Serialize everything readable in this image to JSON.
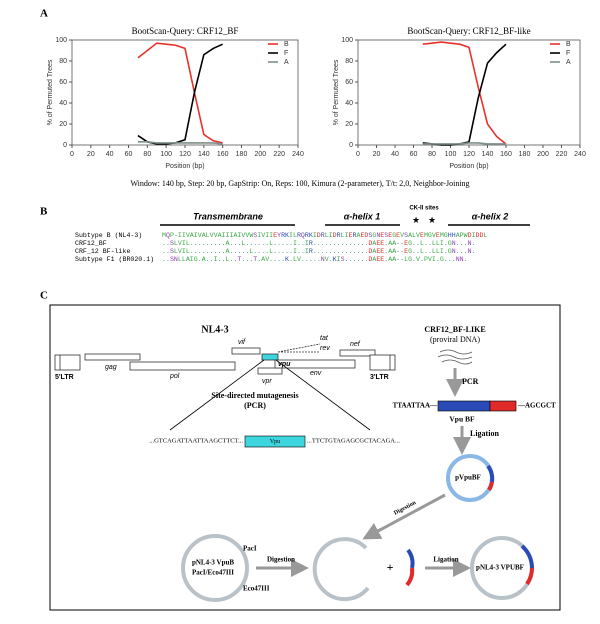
{
  "panels": [
    "A",
    "B",
    "C"
  ],
  "chart_data": [
    {
      "type": "line",
      "title": "BootScan-Query: CRF12_BF",
      "xlabel": "Position (bp)",
      "ylabel": "% of Permuted Trees",
      "x": [
        70,
        80,
        90,
        100,
        110,
        120,
        130,
        140,
        150,
        160
      ],
      "series": [
        {
          "name": "B",
          "color": "#e8312a",
          "values": [
            83,
            90,
            97,
            96,
            95,
            92,
            50,
            10,
            4,
            2
          ]
        },
        {
          "name": "F",
          "color": "#000000",
          "values": [
            9,
            3,
            1,
            1,
            2,
            5,
            50,
            86,
            92,
            96
          ]
        },
        {
          "name": "A",
          "color": "#7f8f8a",
          "values": [
            3,
            3,
            2,
            2,
            2,
            2,
            2,
            2,
            2,
            1
          ]
        }
      ],
      "xlim": [
        0,
        240
      ],
      "xticks": [
        0,
        20,
        40,
        60,
        80,
        100,
        120,
        140,
        160,
        180,
        200,
        220,
        240
      ],
      "ylim": [
        0,
        100
      ],
      "yticks": [
        0,
        20,
        40,
        60,
        80,
        100
      ],
      "legend": "upper right"
    },
    {
      "type": "line",
      "title": "BootScan-Query: CRF12_BF-like",
      "xlabel": "Position (bp)",
      "ylabel": "% of Permuted Trees",
      "x": [
        70,
        80,
        90,
        100,
        110,
        120,
        130,
        140,
        150,
        160
      ],
      "series": [
        {
          "name": "B",
          "color": "#e8312a",
          "values": [
            96,
            97,
            98,
            97,
            96,
            93,
            55,
            20,
            8,
            1
          ]
        },
        {
          "name": "F",
          "color": "#000000",
          "values": [
            2,
            1,
            0,
            0,
            1,
            3,
            45,
            78,
            88,
            96
          ]
        },
        {
          "name": "A",
          "color": "#7f8f8a",
          "values": [
            1,
            1,
            1,
            1,
            1,
            2,
            2,
            1,
            1,
            1
          ]
        }
      ],
      "xlim": [
        0,
        240
      ],
      "xticks": [
        0,
        20,
        40,
        60,
        80,
        100,
        120,
        140,
        160,
        180,
        200,
        220,
        240
      ],
      "ylim": [
        0,
        100
      ],
      "yticks": [
        0,
        20,
        40,
        60,
        80,
        100
      ],
      "legend": "upper right"
    }
  ],
  "caption": "Window: 140 bp, Step: 20 bp, GapStrip: On, Reps: 100, Kimura (2-parameter), T/t: 2,0, Neighbor-Joining",
  "alignment": {
    "regions": [
      "Transmembrane",
      "α-helix 1",
      "CK-II sites",
      "α-helix 2"
    ],
    "rows": [
      {
        "name": "Subtype B (NL4-3)",
        "sequence": "MQP-IIVAIVALVVAIIIAIVVWSIVIIEYRKILRQRKIDRLIDRLIERAEDSGNESEGEVSALVEMGVEMGHHAPWDIDDL"
      },
      {
        "name": "CRF12_BF",
        "sequence": "..SLVIL.........A...L......L.....I..IR..............DAEE.AA--EG..L..LLI.GN...N."
      },
      {
        "name": "CRF_12 BF-like",
        "sequence": "..SLVIL.........A.....L....L.....I..IR..............DAEE.AA--EG..L..LLI.GN...N."
      },
      {
        "name": "Subtype F1 (BR020.1)",
        "sequence": "..SNLLAIG.A..I..L..T...T.AV....K.LV.....NV.KIS......DAEE.AA--LG.V.PVI.G...NN."
      }
    ]
  },
  "diagram": {
    "construct": "NL4-3",
    "genes": [
      "5'LTR",
      "gag",
      "pol",
      "vif",
      "vpr",
      "vpu",
      "tat",
      "rev",
      "env",
      "nef",
      "3'LTR"
    ],
    "mutagenesis": "Site-directed mutagenesis",
    "mutagenesis_method": "(PCR)",
    "seq_left": "...GTCAGATTAATTAAGCTTCT...",
    "vpu_box": "Vpu",
    "seq_right": "...TTCTGTAGAGCGCTACAGA...",
    "source": "CRF12_BF-LIKE",
    "source_note": "(proviral DNA)",
    "pcr": "PCR",
    "insert_left": "TTAATTAA—",
    "insert_right": "—AGCGCT",
    "insert_name": "Vpu BF",
    "ligation_1": "Ligation",
    "plasmid_bf": "pVpuBF",
    "digestion_1": "Digestion",
    "vector": "pNL4-3 VpuB",
    "vector_sites": "PacI/Eco47III",
    "site_1": "PacI",
    "site_2": "Eco47III",
    "digestion_2": "Digestion",
    "plus": "+",
    "ligation_2": "Ligation",
    "product": "pNL4-3 VPUBF"
  }
}
